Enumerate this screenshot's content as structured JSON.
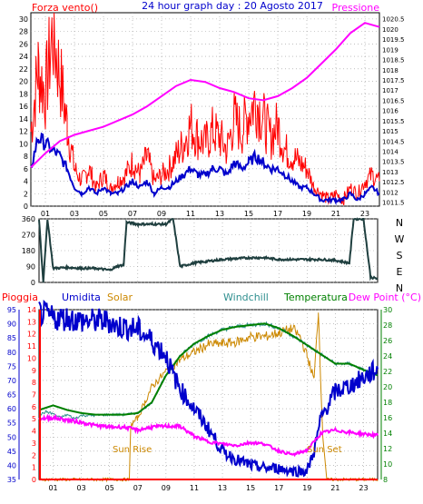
{
  "colors": {
    "wind": "#ff0000",
    "gust": "#ff0000",
    "pressure": "#ff00ff",
    "humidity": "#0000cc",
    "solar": "#cc8800",
    "windchill": "#2f8f8f",
    "temperature": "#008000",
    "dewpoint": "#ff00ff",
    "direction": "#1f3f3f",
    "rain": "#ff0000",
    "grid": "#9a9a9a",
    "axis": "#000000"
  },
  "chart_data": [
    {
      "type": "line",
      "title": "24 hour graph day : 20 Agosto 2017",
      "x_ticks": [
        "01",
        "03",
        "05",
        "07",
        "09",
        "11",
        "13",
        "15",
        "17",
        "19",
        "21",
        "23"
      ],
      "x_range_hours": [
        0,
        24
      ],
      "left_axis": {
        "label": "Forza vento()",
        "range": [
          0,
          31
        ],
        "ticks": [
          0,
          2,
          4,
          6,
          8,
          10,
          12,
          14,
          16,
          18,
          20,
          22,
          24,
          26,
          28,
          30
        ]
      },
      "right_axis": {
        "label": "Pressione",
        "range": [
          1011.3,
          1020.8
        ],
        "ticks": [
          "1011.5",
          "1012",
          "1012.5",
          "1013",
          "1013.5",
          "1014",
          "1014.5",
          "1015",
          "1015.5",
          "1016",
          "1016.5",
          "1017",
          "1017.5",
          "1018",
          "1018.5",
          "1019",
          "1019.5",
          "1020",
          "1020.5"
        ]
      },
      "series": [
        {
          "name": "Gust",
          "axis": "left",
          "x": [
            0,
            0.5,
            1,
            1.5,
            2,
            2.5,
            3,
            3.5,
            4,
            4.5,
            5,
            5.5,
            6,
            6.5,
            7,
            7.5,
            8,
            8.5,
            9,
            9.5,
            10,
            10.5,
            11,
            11.5,
            12,
            12.5,
            13,
            13.5,
            14,
            14.5,
            15,
            15.5,
            16,
            16.5,
            17,
            17.5,
            18,
            18.5,
            19,
            19.5,
            20,
            20.5,
            21,
            21.5,
            22,
            22.5,
            23,
            23.5,
            24
          ],
          "values": [
            12,
            22,
            18,
            28,
            21,
            13,
            6,
            4,
            6,
            3,
            5,
            3,
            4,
            5,
            7,
            5,
            8,
            4,
            5,
            6,
            8,
            10,
            13,
            11,
            10,
            12,
            11,
            9,
            14,
            12,
            15,
            17,
            14,
            11,
            13,
            9,
            8,
            7,
            6,
            3,
            2,
            1,
            2,
            1,
            3,
            2,
            4,
            5,
            4
          ]
        },
        {
          "name": "Wind",
          "axis": "left",
          "x": [
            0,
            0.5,
            1,
            1.5,
            2,
            2.5,
            3,
            3.5,
            4,
            4.5,
            5,
            5.5,
            6,
            6.5,
            7,
            7.5,
            8,
            8.5,
            9,
            9.5,
            10,
            10.5,
            11,
            11.5,
            12,
            12.5,
            13,
            13.5,
            14,
            14.5,
            15,
            15.5,
            16,
            16.5,
            17,
            17.5,
            18,
            18.5,
            19,
            19.5,
            20,
            20.5,
            21,
            21.5,
            22,
            22.5,
            23,
            23.5,
            24
          ],
          "values": [
            6,
            11,
            10,
            9,
            8,
            6,
            3,
            2,
            3,
            2,
            3,
            2,
            2,
            3,
            4,
            3,
            4,
            2,
            3,
            3,
            4,
            5,
            6,
            5,
            5,
            6,
            6,
            5,
            7,
            6,
            7,
            8,
            7,
            6,
            6,
            5,
            4,
            3,
            3,
            2,
            1,
            1,
            1,
            1,
            2,
            1,
            2,
            3,
            2
          ]
        },
        {
          "name": "Pressione",
          "axis": "right",
          "x": [
            0,
            1,
            2,
            3,
            4,
            5,
            6,
            7,
            8,
            9,
            10,
            11,
            12,
            13,
            14,
            15,
            16,
            17,
            18,
            19,
            20,
            21,
            22,
            23,
            24
          ],
          "values": [
            1013.2,
            1013.9,
            1014.5,
            1014.8,
            1015.0,
            1015.2,
            1015.5,
            1015.8,
            1016.2,
            1016.7,
            1017.2,
            1017.5,
            1017.4,
            1017.1,
            1016.9,
            1016.6,
            1016.5,
            1016.7,
            1017.1,
            1017.6,
            1018.3,
            1019.0,
            1019.8,
            1020.3,
            1020.1
          ]
        }
      ]
    },
    {
      "type": "line",
      "x_range_hours": [
        0,
        24
      ],
      "left_axis": {
        "range": [
          0,
          360
        ],
        "ticks": [
          0,
          90,
          180,
          270,
          360
        ]
      },
      "right_axis_labels": [
        "N",
        "W",
        "S",
        "E",
        "N"
      ],
      "series": [
        {
          "name": "Direzione vento",
          "x": [
            0,
            0.3,
            0.6,
            1,
            2,
            3,
            4,
            5,
            5.5,
            6,
            6.2,
            7,
            8,
            9,
            9.5,
            10,
            11,
            12,
            13,
            14,
            15,
            16,
            17,
            18,
            19,
            20,
            21,
            22,
            22.3,
            23,
            23.5,
            24
          ],
          "values": [
            360,
            0,
            360,
            80,
            85,
            80,
            80,
            70,
            90,
            100,
            340,
            330,
            330,
            330,
            360,
            90,
            110,
            120,
            130,
            135,
            140,
            140,
            130,
            130,
            130,
            130,
            125,
            110,
            360,
            360,
            30,
            20
          ]
        }
      ]
    },
    {
      "type": "line",
      "x_range_hours": [
        0,
        24
      ],
      "left_axis": {
        "label": "Umidita",
        "range": [
          35,
          95
        ],
        "ticks": [
          35,
          40,
          45,
          50,
          55,
          60,
          65,
          70,
          75,
          80,
          85,
          90,
          95
        ]
      },
      "rain_axis": {
        "label": "Pioggia",
        "range": [
          0,
          14
        ],
        "ticks": [
          0,
          1,
          2,
          3,
          4,
          5,
          6,
          7,
          8,
          9,
          10,
          11,
          12,
          13,
          14
        ]
      },
      "right_axis": {
        "label": "Dew Point (°C)",
        "range": [
          8,
          30
        ],
        "ticks": [
          8,
          10,
          12,
          14,
          16,
          18,
          20,
          22,
          24,
          26,
          28,
          30
        ]
      },
      "legend": [
        "Pioggia",
        "Umidita",
        "Solar",
        "Windchill",
        "Temperatura",
        "Dew Point (°C)"
      ],
      "annotations": [
        "Sun Rise",
        "Sun Set"
      ],
      "series": [
        {
          "name": "Umidita",
          "axis": "left",
          "x": [
            0,
            1,
            2,
            3,
            4,
            5,
            5.5,
            6,
            7,
            8,
            9,
            9.5,
            10,
            11,
            12,
            13,
            14,
            15,
            16,
            17,
            18,
            19,
            19.5,
            20,
            21,
            22,
            23,
            24
          ],
          "values": [
            94,
            92,
            92,
            91,
            91,
            91,
            89,
            89,
            88,
            84,
            79,
            72,
            67,
            60,
            53,
            45,
            42,
            40,
            39,
            39,
            38,
            38,
            45,
            57,
            66,
            68,
            71,
            74
          ]
        },
        {
          "name": "Temperatura",
          "axis": "right",
          "x": [
            0,
            1,
            2,
            3,
            4,
            5,
            6,
            7,
            8,
            9,
            10,
            11,
            12,
            13,
            14,
            15,
            16,
            17,
            18,
            19,
            20,
            21,
            22,
            23,
            24
          ],
          "values": [
            17.0,
            17.6,
            17.0,
            16.6,
            16.4,
            16.4,
            16.4,
            16.6,
            18.0,
            21.5,
            24.0,
            25.6,
            26.6,
            27.4,
            27.8,
            28.0,
            28.2,
            27.6,
            26.6,
            25.4,
            24.2,
            23.0,
            23.0,
            22.2,
            21.5
          ]
        },
        {
          "name": "Windchill",
          "axis": "right",
          "x": [
            0,
            0.5,
            1,
            1.5,
            2,
            2.5,
            3,
            4,
            5,
            6,
            7,
            8,
            9,
            10,
            11,
            12,
            13,
            14,
            15,
            16,
            17,
            18,
            19,
            20,
            21,
            22,
            23,
            24
          ],
          "values": [
            16.3,
            16.8,
            16.5,
            16.0,
            16.4,
            15.9,
            16.3,
            16.3,
            16.4,
            16.4,
            16.6,
            18.0,
            21.5,
            24.0,
            25.6,
            26.6,
            27.4,
            27.8,
            28.0,
            28.2,
            27.6,
            26.6,
            25.4,
            24.2,
            23.0,
            23.0,
            22.2,
            21.5
          ]
        },
        {
          "name": "Dew Point (°C)",
          "axis": "right",
          "x": [
            0,
            1,
            2,
            3,
            4,
            5,
            6,
            7,
            8,
            9,
            10,
            11,
            12,
            13,
            14,
            15,
            16,
            17,
            18,
            19,
            20,
            21,
            22,
            23,
            24
          ],
          "values": [
            15.9,
            16.0,
            15.7,
            15.4,
            15.0,
            14.8,
            14.8,
            14.4,
            14.8,
            14.9,
            14.9,
            13.6,
            12.9,
            12.6,
            12.4,
            12.8,
            12.6,
            11.7,
            11.2,
            11.8,
            14.0,
            14.4,
            14.1,
            13.9,
            13.7
          ]
        },
        {
          "name": "Solar",
          "axis": "right",
          "x": [
            0,
            6.4,
            6.5,
            7,
            7.5,
            8,
            8.5,
            9,
            10,
            11,
            12,
            13,
            14,
            15,
            16,
            17,
            18,
            18.5,
            19,
            19.5,
            19.8,
            20.1,
            20.4,
            24
          ],
          "values": [
            8,
            8,
            15,
            16,
            18,
            20,
            21,
            22,
            23.5,
            24.5,
            25.5,
            25.6,
            25.8,
            26.5,
            26.5,
            27,
            27.5,
            26.5,
            24,
            21,
            29.8,
            14,
            8,
            8
          ]
        },
        {
          "name": "Pioggia",
          "axis": "rain",
          "x": [
            0,
            24
          ],
          "values": [
            0,
            0
          ]
        }
      ]
    }
  ]
}
